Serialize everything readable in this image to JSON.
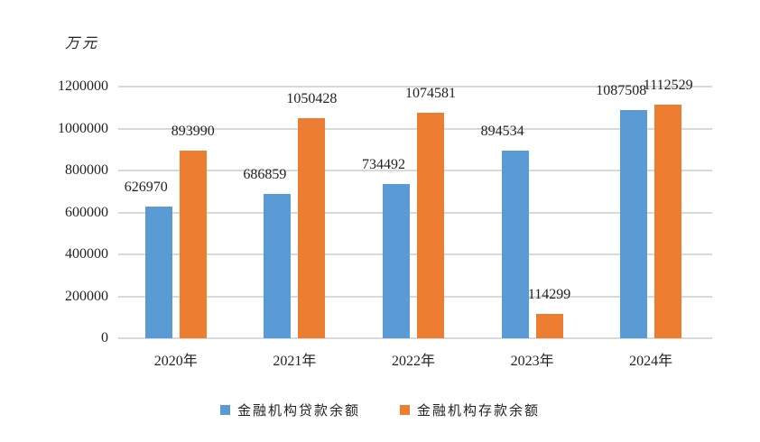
{
  "chart_data": {
    "type": "bar",
    "title": "",
    "unit_label": "万元",
    "xlabel": "",
    "ylabel": "万元",
    "ylim": [
      0,
      1200000
    ],
    "yticks": [
      0,
      200000,
      400000,
      600000,
      800000,
      1000000,
      1200000
    ],
    "grid": true,
    "legend_position": "bottom",
    "categories": [
      "2020年",
      "2021年",
      "2022年",
      "2023年",
      "2024年"
    ],
    "series": [
      {
        "name": "金融机构贷款余额",
        "color": "#5b9bd5",
        "values": [
          626970,
          686859,
          734492,
          894534,
          1087508
        ]
      },
      {
        "name": "金融机构存款余额",
        "color": "#ed7d31",
        "values": [
          893990,
          1050428,
          1074581,
          114299,
          1112529
        ]
      }
    ]
  }
}
